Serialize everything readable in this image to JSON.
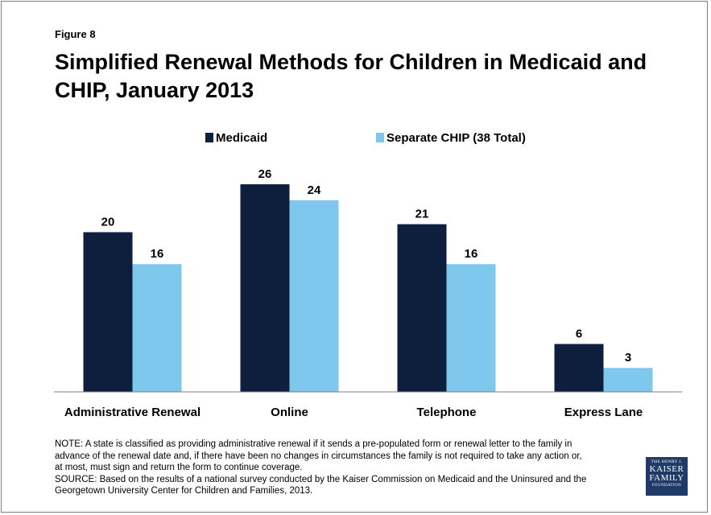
{
  "figure_label": "Figure 8",
  "title": "Simplified Renewal Methods for Children in Medicaid and CHIP, January 2013",
  "colors": {
    "medicaid": "#0e1f3d",
    "chip": "#7ec8ee",
    "axis": "#7f7f7f"
  },
  "chart_data": {
    "type": "bar",
    "categories": [
      "Administrative Renewal",
      "Online",
      "Telephone",
      "Express Lane"
    ],
    "series": [
      {
        "name": "Medicaid",
        "values": [
          20,
          26,
          21,
          6
        ]
      },
      {
        "name": "Separate CHIP (38 Total)",
        "values": [
          16,
          24,
          16,
          3
        ]
      }
    ],
    "ylim": [
      0,
      26
    ],
    "legend": "top-center",
    "grid": false
  },
  "note_lines": [
    "NOTE: A state is classified as providing administrative renewal if it sends a pre-populated form or renewal letter to the family in",
    "advance of the renewal date and, if there have been no changes in circumstances the family is not required to take any action or,",
    "at most, must sign and return the form to continue coverage.",
    "SOURCE: Based on the results of a national survey conducted by the Kaiser Commission on Medicaid and the Uninsured and the",
    "Georgetown University Center for Children and Families, 2013."
  ],
  "logo": {
    "line1": "THE HENRY J.",
    "line2": "KAISER",
    "line3": "FAMILY",
    "line4": "FOUNDATION"
  }
}
